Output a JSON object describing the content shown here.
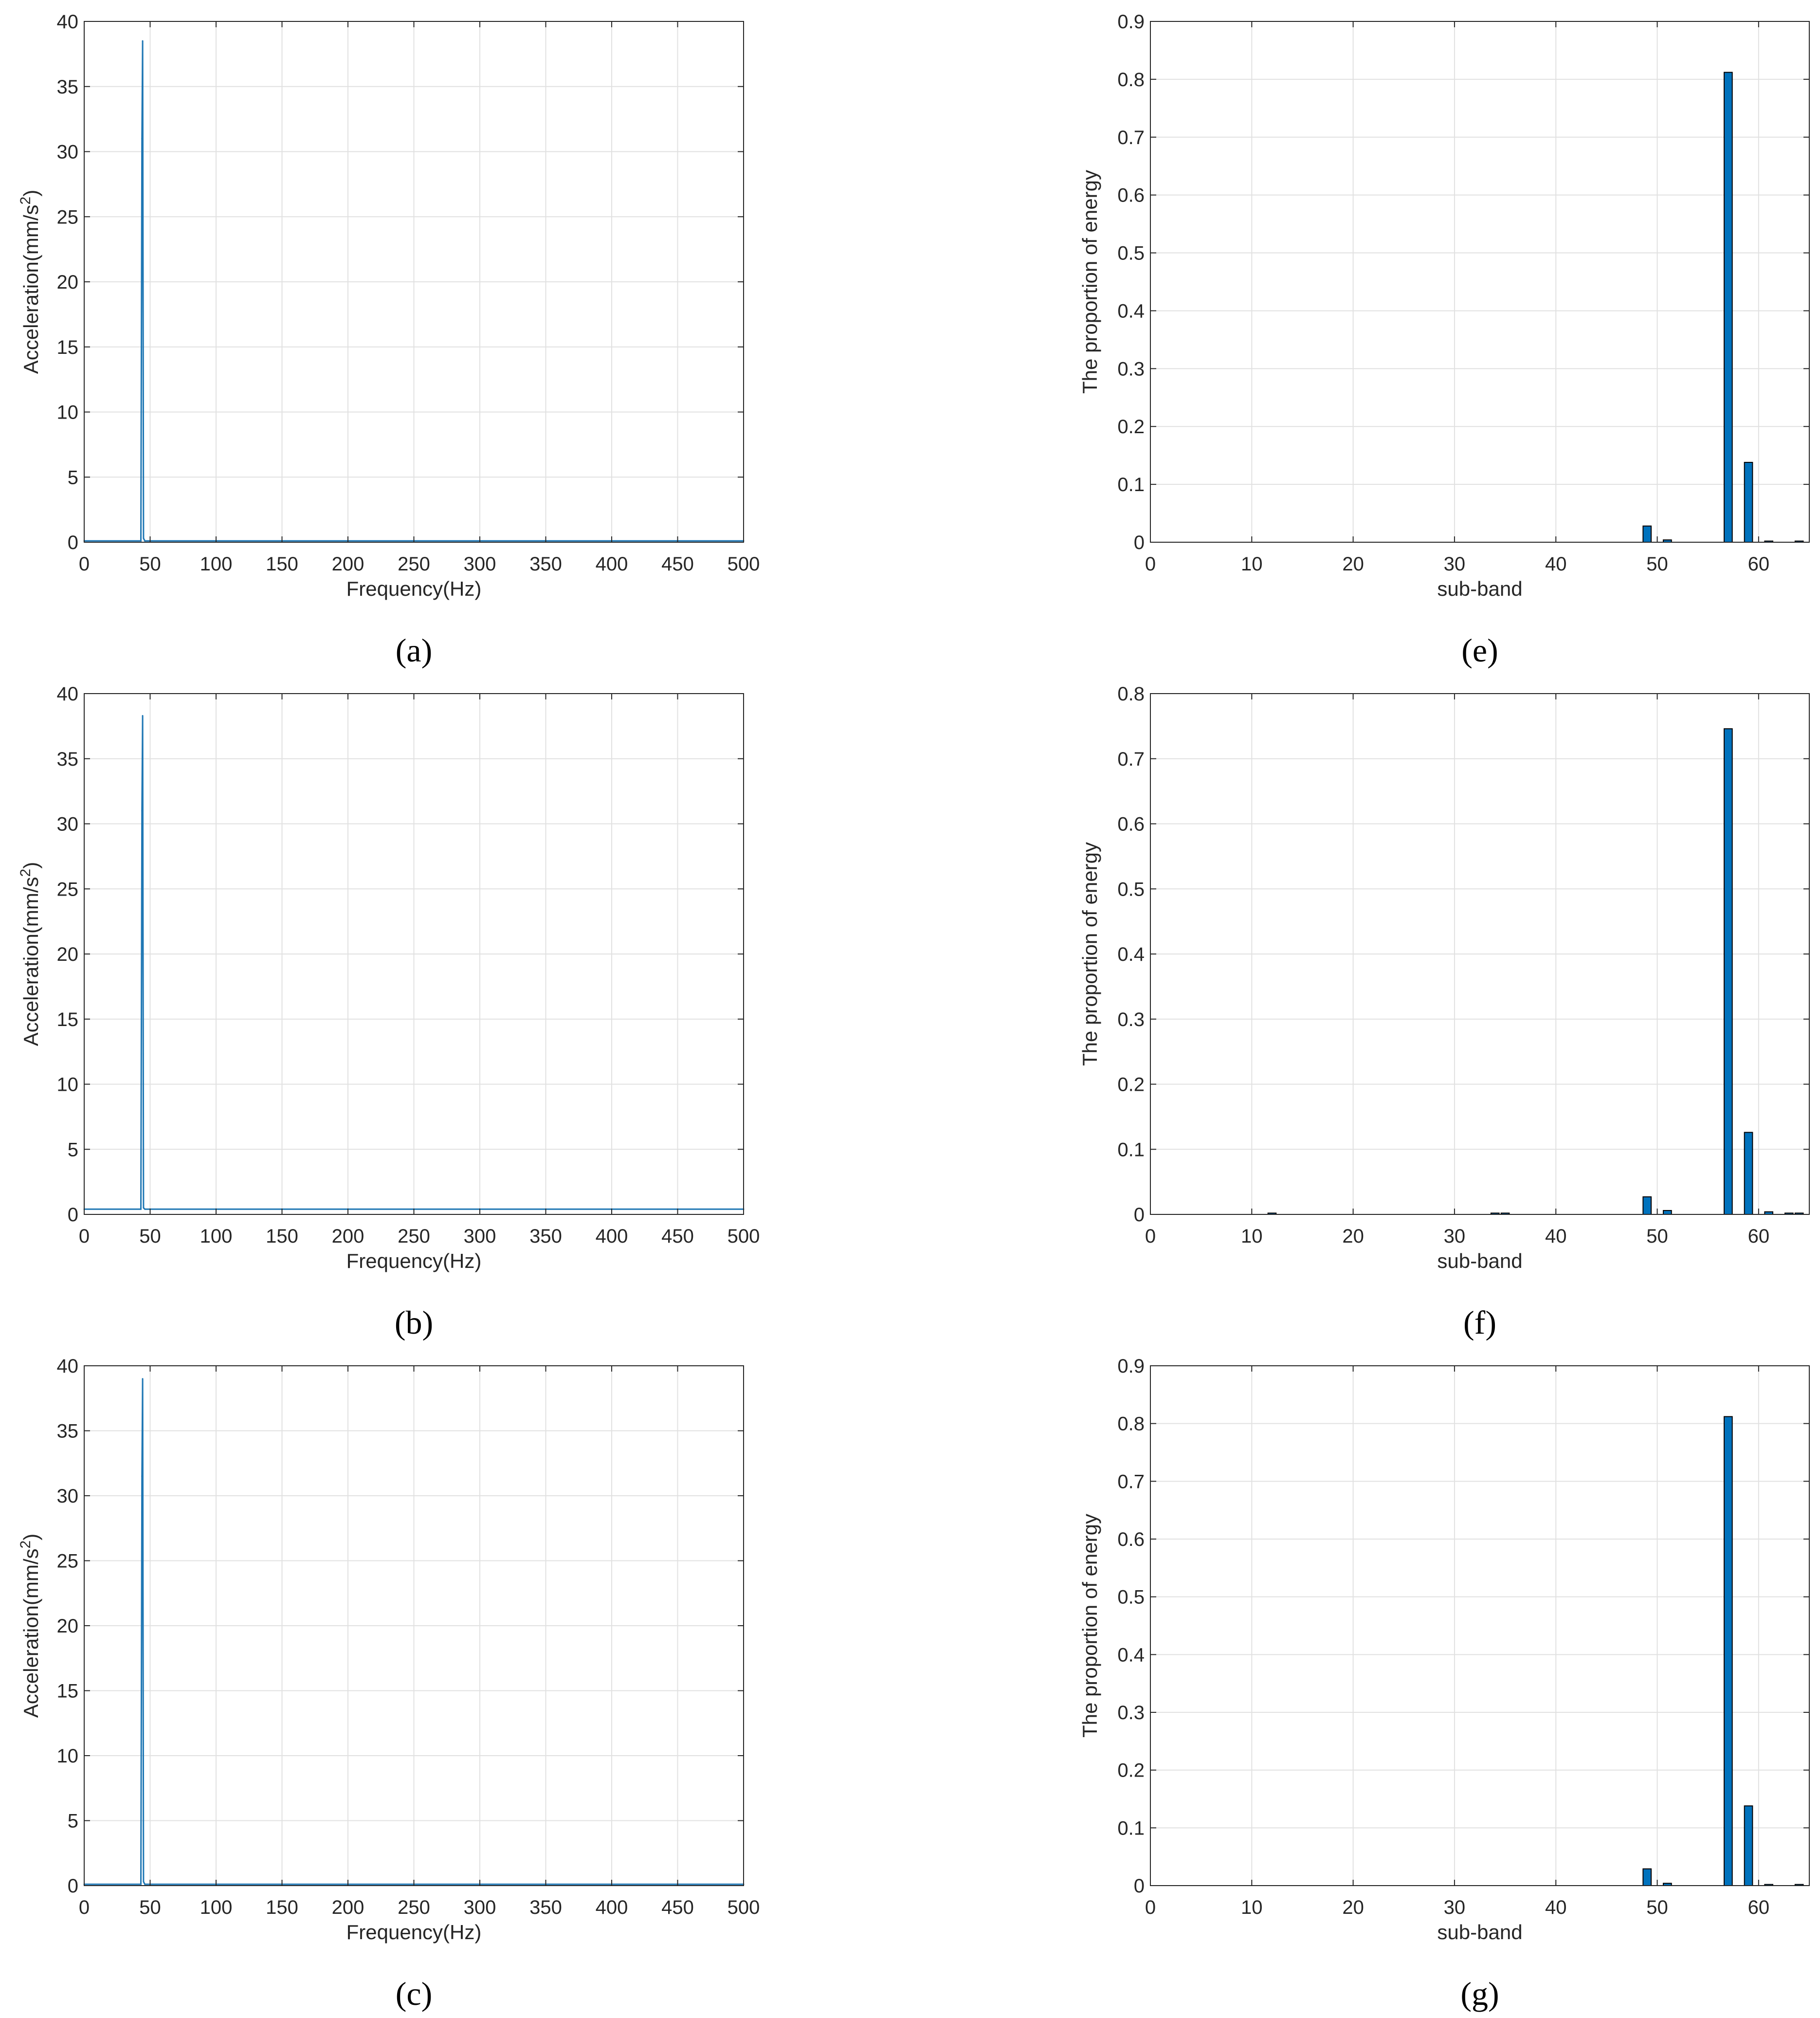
{
  "chart_data": [
    {
      "panel": "a",
      "caption": "(a)",
      "type": "line",
      "xlabel": "Frequency(Hz)",
      "ylabel": "Acceleration(mm/s2)",
      "xlim": [
        0,
        500
      ],
      "ylim": [
        0,
        40
      ],
      "xticks": [
        0,
        50,
        100,
        150,
        200,
        250,
        300,
        350,
        400,
        450,
        500
      ],
      "yticks": [
        0,
        5,
        10,
        15,
        20,
        25,
        30,
        35,
        40
      ],
      "grid": true,
      "color": "#1f77b4",
      "x": [
        0,
        43,
        43.8,
        44.3,
        45,
        46,
        100,
        200,
        300,
        400,
        500
      ],
      "y": [
        0.1,
        0.1,
        31,
        38.5,
        0.3,
        0.1,
        0.1,
        0.1,
        0.1,
        0.1,
        0.1
      ]
    },
    {
      "panel": "b",
      "caption": "(b)",
      "type": "line",
      "xlabel": "Frequency(Hz)",
      "ylabel": "Acceleration(mm/s2)",
      "xlim": [
        0,
        500
      ],
      "ylim": [
        0,
        40
      ],
      "xticks": [
        0,
        50,
        100,
        150,
        200,
        250,
        300,
        350,
        400,
        450,
        500
      ],
      "yticks": [
        0,
        5,
        10,
        15,
        20,
        25,
        30,
        35,
        40
      ],
      "grid": true,
      "color": "#1f77b4",
      "x": [
        0,
        43,
        43.8,
        44.3,
        45,
        46,
        100,
        200,
        300,
        400,
        500
      ],
      "y": [
        0.4,
        0.4,
        31,
        38.3,
        0.5,
        0.4,
        0.4,
        0.4,
        0.4,
        0.4,
        0.4
      ]
    },
    {
      "panel": "c",
      "caption": "(c)",
      "type": "line",
      "xlabel": "Frequency(Hz)",
      "ylabel": "Acceleration(mm/s2)",
      "xlim": [
        0,
        500
      ],
      "ylim": [
        0,
        40
      ],
      "xticks": [
        0,
        50,
        100,
        150,
        200,
        250,
        300,
        350,
        400,
        450,
        500
      ],
      "yticks": [
        0,
        5,
        10,
        15,
        20,
        25,
        30,
        35,
        40
      ],
      "grid": true,
      "color": "#1f77b4",
      "x": [
        0,
        43,
        43.8,
        44.3,
        45,
        46,
        100,
        200,
        300,
        400,
        500
      ],
      "y": [
        0.1,
        0.1,
        31.5,
        39,
        0.3,
        0.1,
        0.1,
        0.1,
        0.1,
        0.1,
        0.1
      ]
    },
    {
      "panel": "e",
      "caption": "(e)",
      "type": "bar",
      "xlabel": "sub-band",
      "ylabel": "The proportion of energy",
      "xlim": [
        0,
        65
      ],
      "ylim": [
        0,
        0.9
      ],
      "xticks": [
        0,
        10,
        20,
        30,
        40,
        50,
        60
      ],
      "yticks": [
        0,
        0.1,
        0.2,
        0.3,
        0.4,
        0.5,
        0.6,
        0.7,
        0.8,
        0.9
      ],
      "grid": true,
      "color": "#0072bd",
      "categories": [
        49,
        51,
        57,
        59,
        61,
        64
      ],
      "values": [
        0.028,
        0.004,
        0.812,
        0.138,
        0.002,
        0.002
      ]
    },
    {
      "panel": "f",
      "caption": "(f)",
      "type": "bar",
      "xlabel": "sub-band",
      "ylabel": "The proportion of energy",
      "xlim": [
        0,
        65
      ],
      "ylim": [
        0,
        0.8
      ],
      "xticks": [
        0,
        10,
        20,
        30,
        40,
        50,
        60
      ],
      "yticks": [
        0,
        0.1,
        0.2,
        0.3,
        0.4,
        0.5,
        0.6,
        0.7,
        0.8
      ],
      "grid": true,
      "color": "#0072bd",
      "categories": [
        12,
        34,
        35,
        49,
        51,
        57,
        59,
        61,
        63,
        64
      ],
      "values": [
        0.002,
        0.002,
        0.002,
        0.027,
        0.006,
        0.746,
        0.126,
        0.004,
        0.002,
        0.002
      ]
    },
    {
      "panel": "g",
      "caption": "(g)",
      "type": "bar",
      "xlabel": "sub-band",
      "ylabel": "The proportion of energy",
      "xlim": [
        0,
        65
      ],
      "ylim": [
        0,
        0.9
      ],
      "xticks": [
        0,
        10,
        20,
        30,
        40,
        50,
        60
      ],
      "yticks": [
        0,
        0.1,
        0.2,
        0.3,
        0.4,
        0.5,
        0.6,
        0.7,
        0.8,
        0.9
      ],
      "grid": true,
      "color": "#0072bd",
      "categories": [
        49,
        51,
        57,
        59,
        61,
        64
      ],
      "values": [
        0.029,
        0.004,
        0.812,
        0.138,
        0.002,
        0.002
      ]
    }
  ]
}
